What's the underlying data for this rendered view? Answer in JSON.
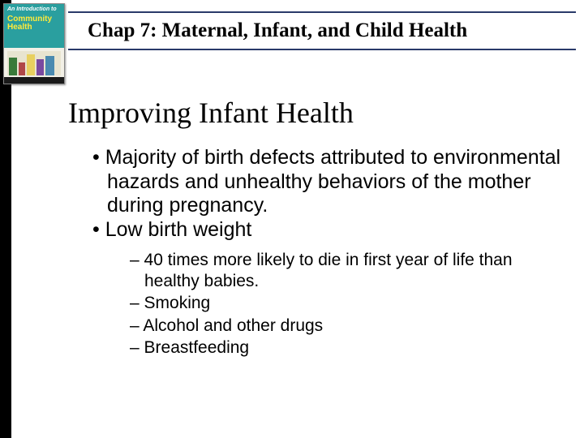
{
  "book_thumb": {
    "line1": "An Introduction to",
    "line2": "Community",
    "line3": "Health"
  },
  "chapter": {
    "title": "Chap 7: Maternal, Infant, and Child Health"
  },
  "slide": {
    "title": "Improving Infant Health",
    "bullets": [
      "Majority of birth defects attributed to environmental hazards and unhealthy behaviors of the mother during pregnancy.",
      "Low birth weight"
    ],
    "sub_bullets": [
      "40 times more likely to die in first year of life than healthy babies.",
      "Smoking",
      "Alcohol and other drugs",
      "Breastfeeding"
    ]
  },
  "colors": {
    "rule": "#2a3a6a",
    "background": "#ffffff",
    "text": "#000000"
  }
}
